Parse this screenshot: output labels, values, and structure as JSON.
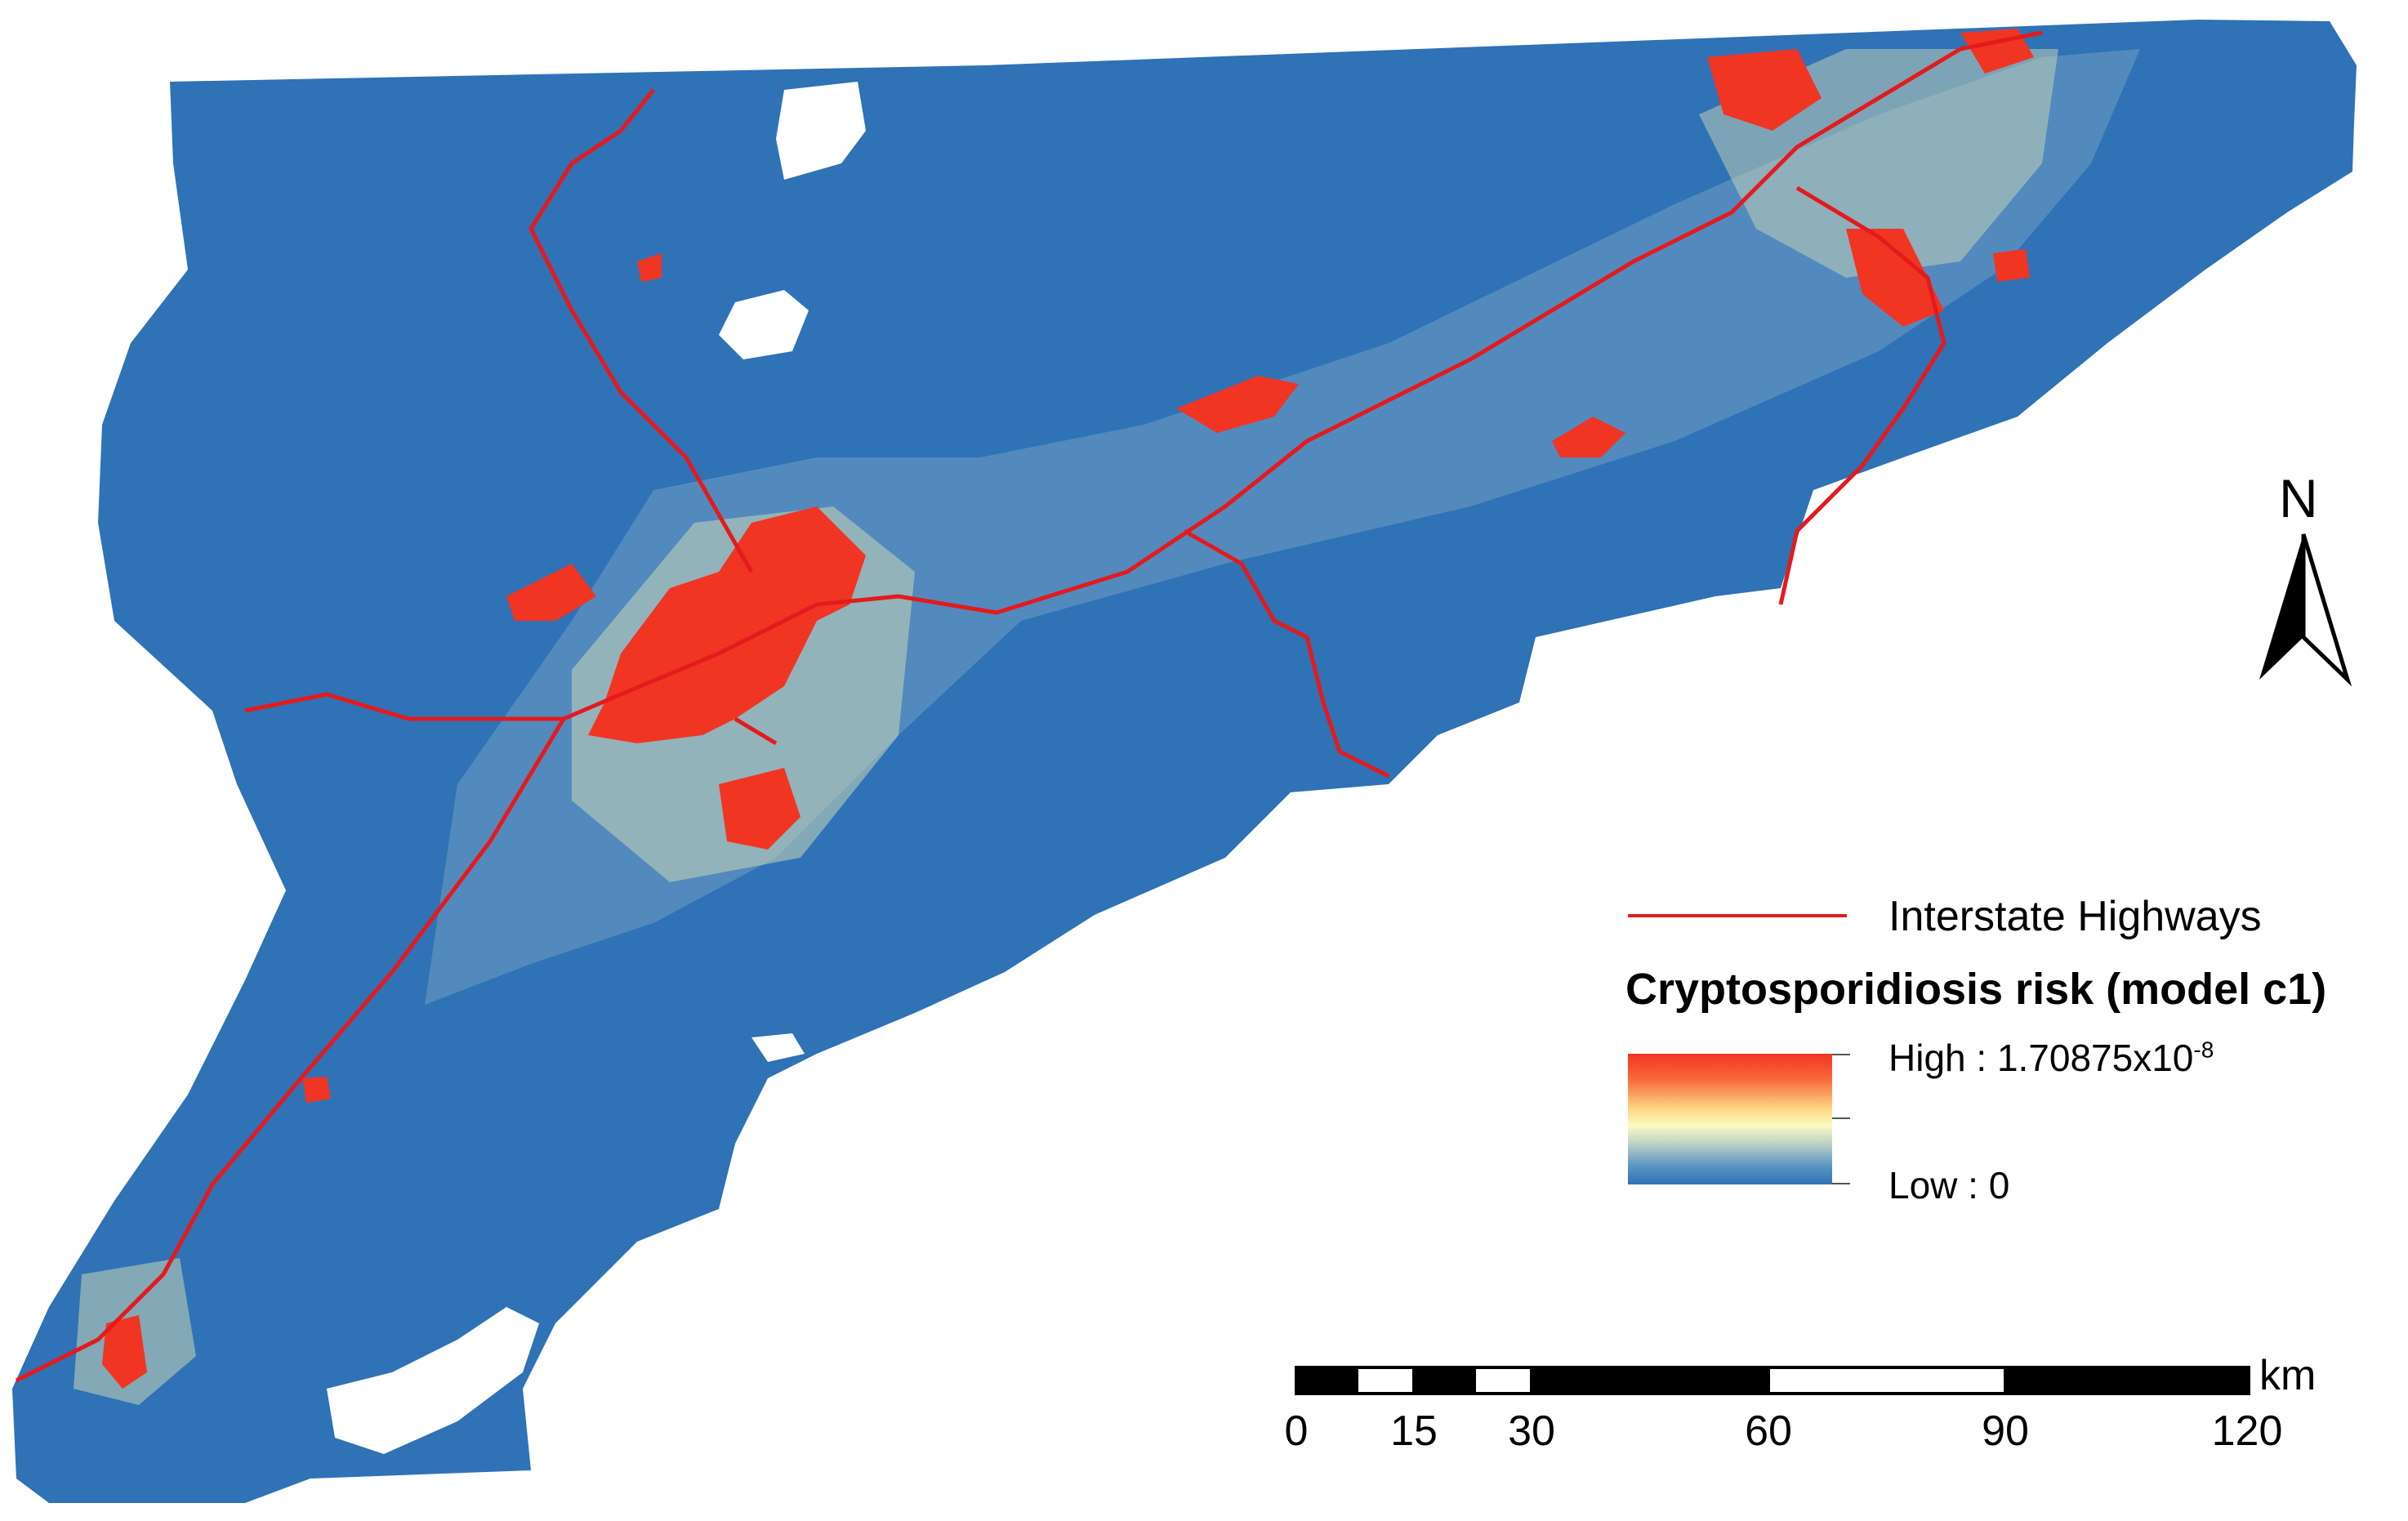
{
  "legend": {
    "line_label": "Interstate Highways",
    "title": "Cryptosporidiosis risk (model c1)",
    "high_label": "High : 1.70875x10",
    "high_exponent": "-8",
    "low_label": "Low : 0",
    "colors": {
      "high": "#f03523",
      "mid": "#fbfbc2",
      "low": "#2f71b6",
      "highway": "#e41a1c"
    }
  },
  "north_arrow": {
    "letter": "N"
  },
  "scale_bar": {
    "unit": "km",
    "labels": [
      "0",
      "15",
      "30",
      "60",
      "90",
      "120"
    ]
  }
}
